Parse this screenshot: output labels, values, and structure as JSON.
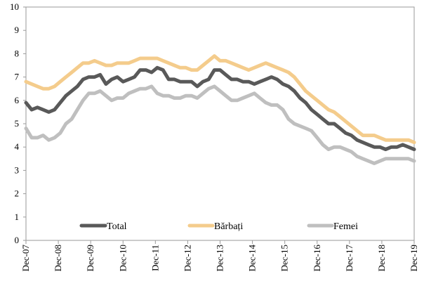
{
  "chart_data": {
    "type": "line",
    "title": "",
    "xlabel": "",
    "ylabel": "",
    "ylim": [
      0,
      10
    ],
    "y_ticks": [
      "0",
      "1",
      "2",
      "3",
      "4",
      "5",
      "6",
      "7",
      "8",
      "9",
      "10"
    ],
    "x_ticks": [
      "Dec-07",
      "Dec-08",
      "Dec-09",
      "Dec-10",
      "Dec-11",
      "Dec-12",
      "Dec-13",
      "Dec-14",
      "Dec-15",
      "Dec-16",
      "Dec-17",
      "Dec-18",
      "Dec-19"
    ],
    "grid": false,
    "legend_position": "bottom-inside",
    "series": [
      {
        "name": "Total",
        "color": "#595959",
        "points": [
          [
            0,
            5.9
          ],
          [
            2,
            5.6
          ],
          [
            4,
            5.7
          ],
          [
            6,
            5.6
          ],
          [
            8,
            5.5
          ],
          [
            10,
            5.6
          ],
          [
            12,
            5.9
          ],
          [
            14,
            6.2
          ],
          [
            16,
            6.4
          ],
          [
            18,
            6.6
          ],
          [
            20,
            6.9
          ],
          [
            22,
            7.0
          ],
          [
            24,
            7.0
          ],
          [
            26,
            7.1
          ],
          [
            28,
            6.7
          ],
          [
            30,
            6.9
          ],
          [
            32,
            7.0
          ],
          [
            34,
            6.8
          ],
          [
            36,
            6.9
          ],
          [
            38,
            7.0
          ],
          [
            40,
            7.3
          ],
          [
            42,
            7.3
          ],
          [
            44,
            7.2
          ],
          [
            46,
            7.4
          ],
          [
            48,
            7.3
          ],
          [
            50,
            6.9
          ],
          [
            52,
            6.9
          ],
          [
            54,
            6.8
          ],
          [
            56,
            6.8
          ],
          [
            58,
            6.8
          ],
          [
            60,
            6.6
          ],
          [
            62,
            6.8
          ],
          [
            64,
            6.9
          ],
          [
            66,
            7.3
          ],
          [
            68,
            7.3
          ],
          [
            70,
            7.1
          ],
          [
            72,
            6.9
          ],
          [
            74,
            6.9
          ],
          [
            76,
            6.8
          ],
          [
            78,
            6.8
          ],
          [
            80,
            6.7
          ],
          [
            82,
            6.8
          ],
          [
            84,
            6.9
          ],
          [
            86,
            7.0
          ],
          [
            88,
            6.9
          ],
          [
            90,
            6.7
          ],
          [
            92,
            6.6
          ],
          [
            94,
            6.4
          ],
          [
            96,
            6.1
          ],
          [
            98,
            5.9
          ],
          [
            100,
            5.6
          ],
          [
            102,
            5.4
          ],
          [
            104,
            5.2
          ],
          [
            106,
            5.0
          ],
          [
            108,
            5.0
          ],
          [
            110,
            4.8
          ],
          [
            112,
            4.6
          ],
          [
            114,
            4.5
          ],
          [
            116,
            4.3
          ],
          [
            118,
            4.2
          ],
          [
            120,
            4.1
          ],
          [
            122,
            4.0
          ],
          [
            124,
            4.0
          ],
          [
            126,
            3.9
          ],
          [
            128,
            4.0
          ],
          [
            130,
            4.0
          ],
          [
            132,
            4.1
          ],
          [
            134,
            4.0
          ],
          [
            136,
            3.9
          ]
        ]
      },
      {
        "name": "Bărbați",
        "color": "#f4cc8c",
        "points": [
          [
            0,
            6.8
          ],
          [
            2,
            6.7
          ],
          [
            4,
            6.6
          ],
          [
            6,
            6.5
          ],
          [
            8,
            6.5
          ],
          [
            10,
            6.6
          ],
          [
            12,
            6.8
          ],
          [
            14,
            7.0
          ],
          [
            16,
            7.2
          ],
          [
            18,
            7.4
          ],
          [
            20,
            7.6
          ],
          [
            22,
            7.6
          ],
          [
            24,
            7.7
          ],
          [
            26,
            7.6
          ],
          [
            28,
            7.5
          ],
          [
            30,
            7.5
          ],
          [
            32,
            7.6
          ],
          [
            34,
            7.6
          ],
          [
            36,
            7.6
          ],
          [
            38,
            7.7
          ],
          [
            40,
            7.8
          ],
          [
            42,
            7.8
          ],
          [
            44,
            7.8
          ],
          [
            46,
            7.8
          ],
          [
            48,
            7.7
          ],
          [
            50,
            7.6
          ],
          [
            52,
            7.5
          ],
          [
            54,
            7.4
          ],
          [
            56,
            7.4
          ],
          [
            58,
            7.3
          ],
          [
            60,
            7.3
          ],
          [
            62,
            7.5
          ],
          [
            64,
            7.7
          ],
          [
            66,
            7.9
          ],
          [
            68,
            7.7
          ],
          [
            70,
            7.7
          ],
          [
            72,
            7.6
          ],
          [
            74,
            7.5
          ],
          [
            76,
            7.4
          ],
          [
            78,
            7.3
          ],
          [
            80,
            7.4
          ],
          [
            82,
            7.5
          ],
          [
            84,
            7.6
          ],
          [
            86,
            7.5
          ],
          [
            88,
            7.4
          ],
          [
            90,
            7.3
          ],
          [
            92,
            7.2
          ],
          [
            94,
            7.0
          ],
          [
            96,
            6.7
          ],
          [
            98,
            6.4
          ],
          [
            100,
            6.2
          ],
          [
            102,
            6.0
          ],
          [
            104,
            5.8
          ],
          [
            106,
            5.6
          ],
          [
            108,
            5.5
          ],
          [
            110,
            5.3
          ],
          [
            112,
            5.1
          ],
          [
            114,
            4.9
          ],
          [
            116,
            4.7
          ],
          [
            118,
            4.5
          ],
          [
            120,
            4.5
          ],
          [
            122,
            4.5
          ],
          [
            124,
            4.4
          ],
          [
            126,
            4.3
          ],
          [
            128,
            4.3
          ],
          [
            130,
            4.3
          ],
          [
            132,
            4.3
          ],
          [
            134,
            4.3
          ],
          [
            136,
            4.2
          ]
        ]
      },
      {
        "name": "Femei",
        "color": "#bfbfbf",
        "points": [
          [
            0,
            4.8
          ],
          [
            2,
            4.4
          ],
          [
            4,
            4.4
          ],
          [
            6,
            4.5
          ],
          [
            8,
            4.3
          ],
          [
            10,
            4.4
          ],
          [
            12,
            4.6
          ],
          [
            14,
            5.0
          ],
          [
            16,
            5.2
          ],
          [
            18,
            5.6
          ],
          [
            20,
            6.0
          ],
          [
            22,
            6.3
          ],
          [
            24,
            6.3
          ],
          [
            26,
            6.4
          ],
          [
            28,
            6.2
          ],
          [
            30,
            6.0
          ],
          [
            32,
            6.1
          ],
          [
            34,
            6.1
          ],
          [
            36,
            6.3
          ],
          [
            38,
            6.4
          ],
          [
            40,
            6.5
          ],
          [
            42,
            6.5
          ],
          [
            44,
            6.6
          ],
          [
            46,
            6.3
          ],
          [
            48,
            6.2
          ],
          [
            50,
            6.2
          ],
          [
            52,
            6.1
          ],
          [
            54,
            6.1
          ],
          [
            56,
            6.2
          ],
          [
            58,
            6.2
          ],
          [
            60,
            6.1
          ],
          [
            62,
            6.3
          ],
          [
            64,
            6.5
          ],
          [
            66,
            6.6
          ],
          [
            68,
            6.4
          ],
          [
            70,
            6.2
          ],
          [
            72,
            6.0
          ],
          [
            74,
            6.0
          ],
          [
            76,
            6.1
          ],
          [
            78,
            6.2
          ],
          [
            80,
            6.3
          ],
          [
            82,
            6.1
          ],
          [
            84,
            5.9
          ],
          [
            86,
            5.8
          ],
          [
            88,
            5.8
          ],
          [
            90,
            5.6
          ],
          [
            92,
            5.2
          ],
          [
            94,
            5.0
          ],
          [
            96,
            4.9
          ],
          [
            98,
            4.8
          ],
          [
            100,
            4.7
          ],
          [
            102,
            4.4
          ],
          [
            104,
            4.1
          ],
          [
            106,
            3.9
          ],
          [
            108,
            4.0
          ],
          [
            110,
            4.0
          ],
          [
            112,
            3.9
          ],
          [
            114,
            3.8
          ],
          [
            116,
            3.6
          ],
          [
            118,
            3.5
          ],
          [
            120,
            3.4
          ],
          [
            122,
            3.3
          ],
          [
            124,
            3.4
          ],
          [
            126,
            3.5
          ],
          [
            128,
            3.5
          ],
          [
            130,
            3.5
          ],
          [
            132,
            3.5
          ],
          [
            134,
            3.5
          ],
          [
            136,
            3.4
          ]
        ]
      }
    ]
  }
}
